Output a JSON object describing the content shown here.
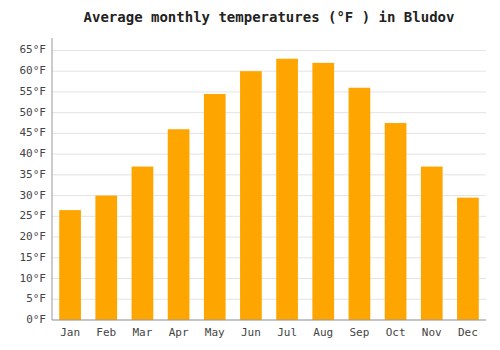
{
  "chart_data": {
    "type": "bar",
    "title": "Average monthly temperatures (°F ) in Bludov",
    "categories": [
      "Jan",
      "Feb",
      "Mar",
      "Apr",
      "May",
      "Jun",
      "Jul",
      "Aug",
      "Sep",
      "Oct",
      "Nov",
      "Dec"
    ],
    "values": [
      26.5,
      30,
      37,
      46,
      54.5,
      60,
      63,
      62,
      56,
      47.5,
      37,
      29.5
    ],
    "color": "#FFA500",
    "ylim": [
      0,
      68
    ],
    "yticks": [
      {
        "value": 0,
        "label": "0°F"
      },
      {
        "value": 5,
        "label": "5°F"
      },
      {
        "value": 10,
        "label": "10°F"
      },
      {
        "value": 15,
        "label": "15°F"
      },
      {
        "value": 20,
        "label": "20°F"
      },
      {
        "value": 25,
        "label": "25°F"
      },
      {
        "value": 30,
        "label": "30°F"
      },
      {
        "value": 35,
        "label": "35°F"
      },
      {
        "value": 40,
        "label": "40°F"
      },
      {
        "value": 45,
        "label": "45°F"
      },
      {
        "value": 50,
        "label": "50°F"
      },
      {
        "value": 55,
        "label": "55°F"
      },
      {
        "value": 60,
        "label": "60°F"
      },
      {
        "value": 65,
        "label": "65°F"
      }
    ],
    "grid": true
  }
}
